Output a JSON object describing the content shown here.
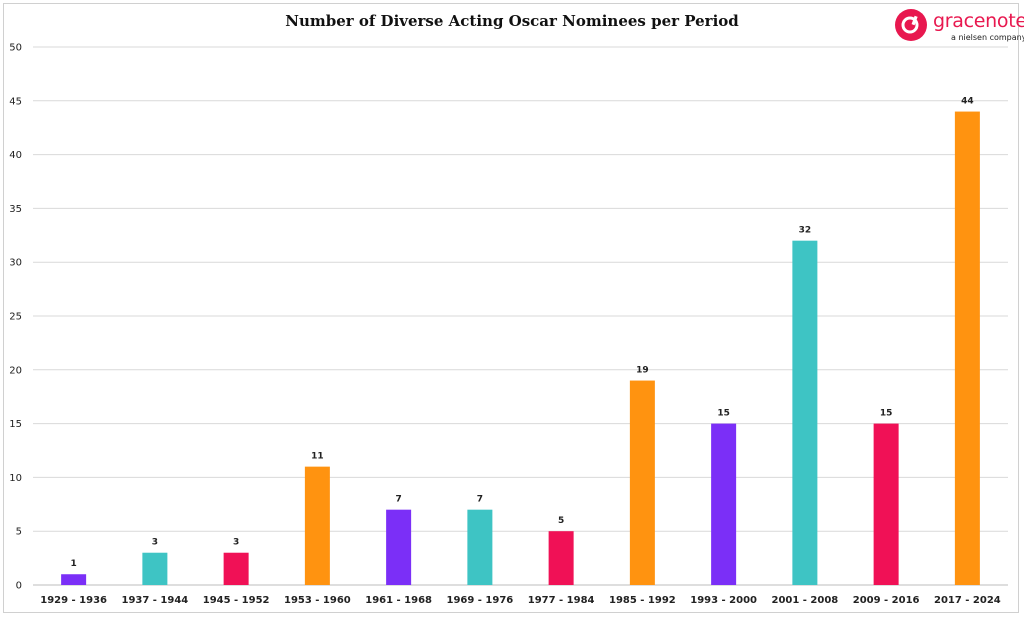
{
  "chart_data": {
    "type": "bar",
    "title": "Number of Diverse Acting Oscar Nominees per Period",
    "xlabel": "",
    "ylabel": "",
    "categories": [
      "1929 - 1936",
      "1937 - 1944",
      "1945 - 1952",
      "1953 - 1960",
      "1961 - 1968",
      "1969 - 1976",
      "1977 - 1984",
      "1985 - 1992",
      "1993 - 2000",
      "2001 - 2008",
      "2009 - 2016",
      "2017 - 2024"
    ],
    "values": [
      1,
      3,
      3,
      11,
      7,
      7,
      5,
      19,
      15,
      32,
      15,
      44
    ],
    "colors": [
      "#7b2ff7",
      "#3ec4c4",
      "#f01156",
      "#ff9310",
      "#7b2ff7",
      "#3ec4c4",
      "#f01156",
      "#ff9310",
      "#7b2ff7",
      "#3ec4c4",
      "#f01156",
      "#ff9310"
    ],
    "ylim": [
      0,
      50
    ],
    "yticks": [
      0,
      5,
      10,
      15,
      20,
      25,
      30,
      35,
      40,
      45,
      50
    ],
    "grid": true,
    "legend": "none",
    "data_labels": true
  },
  "logo": {
    "icon": "gracenote-logo-icon",
    "name": "gracenote",
    "tagline": "a nielsen company",
    "color": "#e8184f"
  }
}
